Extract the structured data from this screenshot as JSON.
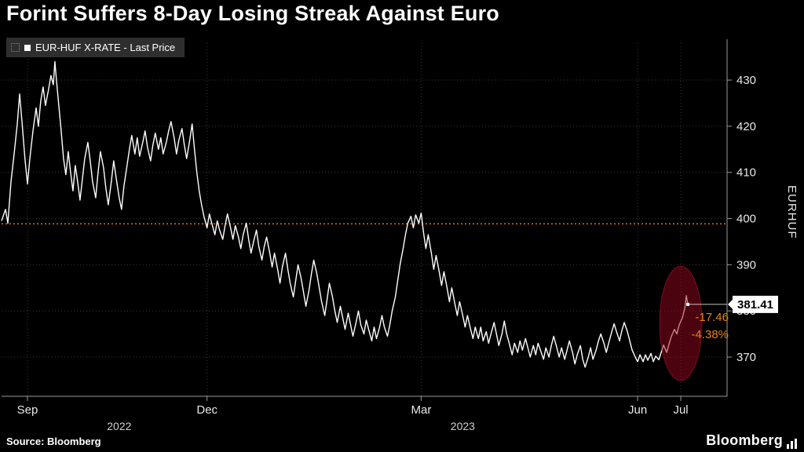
{
  "header": {
    "title": "Forint Suffers 8-Day Losing Streak Against Euro"
  },
  "legend": {
    "label": "EUR-HUF X-RATE - Last Price"
  },
  "footer": {
    "source": "Source:  Bloomberg",
    "logo": "Bloomberg"
  },
  "chart_data": {
    "type": "line",
    "title": "EUR-HUF X-RATE - Last Price",
    "ylabel": "EURHUF",
    "ylim": [
      361.5,
      438
    ],
    "xmax": 925,
    "grid": true,
    "legend_position": "top-left",
    "y_ticks": [
      370,
      380,
      390,
      400,
      410,
      420,
      430
    ],
    "x_ticks": [
      {
        "label": "Sep",
        "pos": 33
      },
      {
        "label": "Dec",
        "pos": 262
      },
      {
        "label": "Mar",
        "pos": 535
      },
      {
        "label": "Jun",
        "pos": 811
      },
      {
        "label": "Jul",
        "pos": 866
      }
    ],
    "x_years": [
      {
        "label": "2022",
        "pos": 150
      },
      {
        "label": "2023",
        "pos": 588
      }
    ],
    "reference_line": {
      "value": 398.87,
      "color": "#e8820c"
    },
    "last_price": {
      "value": 381.41,
      "label": "381.41"
    },
    "annotations": [
      {
        "text": "-17.46",
        "value": 378.7,
        "color": "#e8820c"
      },
      {
        "text": "-4.38%",
        "value": 374.9,
        "color": "#e8820c"
      }
    ],
    "highlight_ellipse": {
      "x": 866,
      "value": 377.3,
      "rx": 27,
      "ry_value": 12.4,
      "fill": "rgba(150,8,30,0.5)"
    },
    "colors": {
      "line": "#ffffff",
      "grid": "#3a3a3a",
      "axis": "#9a9a9a",
      "tick_text": "#e8e8e8",
      "orange": "#e8820c",
      "background": "#000000"
    },
    "series": [
      {
        "name": "EUR-HUF X-RATE",
        "points": [
          [
            0,
            399.5
          ],
          [
            5,
            402
          ],
          [
            8,
            399
          ],
          [
            12,
            408
          ],
          [
            16,
            414
          ],
          [
            20,
            420.5
          ],
          [
            23,
            427
          ],
          [
            26,
            421
          ],
          [
            30,
            412.5
          ],
          [
            33,
            407.5
          ],
          [
            36,
            413
          ],
          [
            40,
            419
          ],
          [
            44,
            424
          ],
          [
            47,
            420
          ],
          [
            50,
            425.5
          ],
          [
            53,
            428.5
          ],
          [
            56,
            424.5
          ],
          [
            60,
            428
          ],
          [
            63,
            431
          ],
          [
            66,
            429
          ],
          [
            68,
            434
          ],
          [
            70,
            430
          ],
          [
            73,
            424.5
          ],
          [
            76,
            419
          ],
          [
            79,
            413
          ],
          [
            82,
            409.5
          ],
          [
            85,
            414.5
          ],
          [
            88,
            410
          ],
          [
            91,
            406
          ],
          [
            94,
            411.5
          ],
          [
            97,
            408
          ],
          [
            100,
            404
          ],
          [
            103,
            408.5
          ],
          [
            106,
            413
          ],
          [
            110,
            416.5
          ],
          [
            113,
            412.5
          ],
          [
            116,
            408
          ],
          [
            120,
            404.5
          ],
          [
            123,
            410
          ],
          [
            126,
            414.5
          ],
          [
            130,
            411
          ],
          [
            133,
            406.5
          ],
          [
            136,
            403
          ],
          [
            140,
            408
          ],
          [
            143,
            412.5
          ],
          [
            146,
            409
          ],
          [
            150,
            404.5
          ],
          [
            153,
            402
          ],
          [
            156,
            407
          ],
          [
            160,
            411.5
          ],
          [
            163,
            415
          ],
          [
            166,
            418
          ],
          [
            170,
            414
          ],
          [
            173,
            417.5
          ],
          [
            176,
            413.5
          ],
          [
            180,
            416.5
          ],
          [
            183,
            419
          ],
          [
            186,
            415.5
          ],
          [
            190,
            412.5
          ],
          [
            193,
            416
          ],
          [
            196,
            418.5
          ],
          [
            200,
            415
          ],
          [
            203,
            417.5
          ],
          [
            206,
            414
          ],
          [
            210,
            416.5
          ],
          [
            213,
            419
          ],
          [
            216,
            421
          ],
          [
            220,
            417.5
          ],
          [
            223,
            414
          ],
          [
            226,
            417
          ],
          [
            230,
            419.5
          ],
          [
            233,
            416
          ],
          [
            236,
            413
          ],
          [
            240,
            417
          ],
          [
            243,
            420.5
          ],
          [
            246,
            415
          ],
          [
            249,
            410
          ],
          [
            252,
            406
          ],
          [
            255,
            403
          ],
          [
            258,
            400.5
          ],
          [
            262,
            398
          ],
          [
            265,
            401
          ],
          [
            268,
            399
          ],
          [
            272,
            396.5
          ],
          [
            275,
            399.5
          ],
          [
            278,
            397.5
          ],
          [
            282,
            395.5
          ],
          [
            285,
            398.5
          ],
          [
            288,
            401
          ],
          [
            292,
            398
          ],
          [
            295,
            395.5
          ],
          [
            298,
            398.5
          ],
          [
            302,
            396
          ],
          [
            305,
            393.5
          ],
          [
            308,
            396.5
          ],
          [
            312,
            399
          ],
          [
            315,
            395.5
          ],
          [
            318,
            392.5
          ],
          [
            322,
            395.5
          ],
          [
            325,
            397.5
          ],
          [
            328,
            394
          ],
          [
            332,
            391
          ],
          [
            335,
            394
          ],
          [
            338,
            396
          ],
          [
            342,
            392.5
          ],
          [
            345,
            389.5
          ],
          [
            348,
            392.5
          ],
          [
            352,
            389
          ],
          [
            355,
            386
          ],
          [
            358,
            389.5
          ],
          [
            362,
            392.5
          ],
          [
            365,
            389
          ],
          [
            368,
            386
          ],
          [
            372,
            383
          ],
          [
            375,
            386.5
          ],
          [
            378,
            390
          ],
          [
            382,
            387
          ],
          [
            385,
            384
          ],
          [
            388,
            381
          ],
          [
            392,
            384.5
          ],
          [
            395,
            388
          ],
          [
            398,
            391
          ],
          [
            402,
            388
          ],
          [
            405,
            385
          ],
          [
            408,
            382
          ],
          [
            412,
            379
          ],
          [
            415,
            382.5
          ],
          [
            418,
            386
          ],
          [
            422,
            383
          ],
          [
            425,
            380
          ],
          [
            428,
            377.5
          ],
          [
            432,
            381
          ],
          [
            435,
            378.5
          ],
          [
            438,
            376
          ],
          [
            442,
            379.5
          ],
          [
            445,
            377
          ],
          [
            448,
            374.5
          ],
          [
            452,
            377.5
          ],
          [
            455,
            380
          ],
          [
            458,
            377
          ],
          [
            462,
            375
          ],
          [
            465,
            378
          ],
          [
            468,
            376
          ],
          [
            472,
            373.5
          ],
          [
            475,
            376.5
          ],
          [
            478,
            374
          ],
          [
            482,
            376.5
          ],
          [
            485,
            379
          ],
          [
            488,
            376.5
          ],
          [
            492,
            374.5
          ],
          [
            495,
            377
          ],
          [
            498,
            380
          ],
          [
            502,
            383
          ],
          [
            505,
            386.5
          ],
          [
            508,
            390
          ],
          [
            512,
            393.5
          ],
          [
            515,
            396.5
          ],
          [
            518,
            399
          ],
          [
            522,
            400.5
          ],
          [
            525,
            398
          ],
          [
            528,
            400.8
          ],
          [
            532,
            399
          ],
          [
            535,
            401.2
          ],
          [
            538,
            397
          ],
          [
            541,
            393.5
          ],
          [
            544,
            396.5
          ],
          [
            548,
            392.5
          ],
          [
            551,
            389
          ],
          [
            554,
            392
          ],
          [
            558,
            388.5
          ],
          [
            561,
            385.5
          ],
          [
            564,
            388.5
          ],
          [
            568,
            385
          ],
          [
            571,
            382
          ],
          [
            574,
            385
          ],
          [
            578,
            381.5
          ],
          [
            581,
            379
          ],
          [
            584,
            382
          ],
          [
            588,
            379
          ],
          [
            591,
            376.5
          ],
          [
            594,
            379
          ],
          [
            598,
            376
          ],
          [
            601,
            374
          ],
          [
            604,
            376.5
          ],
          [
            608,
            374
          ],
          [
            611,
            376.5
          ],
          [
            614,
            373.5
          ],
          [
            618,
            375.5
          ],
          [
            621,
            373
          ],
          [
            624,
            375
          ],
          [
            628,
            377.5
          ],
          [
            631,
            375
          ],
          [
            634,
            372.5
          ],
          [
            638,
            375
          ],
          [
            641,
            377.8
          ],
          [
            644,
            375
          ],
          [
            648,
            372.5
          ],
          [
            651,
            370.5
          ],
          [
            654,
            373
          ],
          [
            658,
            371
          ],
          [
            661,
            373.5
          ],
          [
            664,
            371.5
          ],
          [
            668,
            374
          ],
          [
            671,
            372
          ],
          [
            674,
            370
          ],
          [
            678,
            372.5
          ],
          [
            681,
            370.5
          ],
          [
            684,
            373
          ],
          [
            688,
            371
          ],
          [
            691,
            369.5
          ],
          [
            694,
            372
          ],
          [
            698,
            370
          ],
          [
            701,
            372.5
          ],
          [
            704,
            374.5
          ],
          [
            708,
            372
          ],
          [
            711,
            370
          ],
          [
            714,
            372
          ],
          [
            718,
            369.5
          ],
          [
            721,
            371.5
          ],
          [
            724,
            373.5
          ],
          [
            728,
            371
          ],
          [
            731,
            368.5
          ],
          [
            734,
            370.5
          ],
          [
            738,
            372.5
          ],
          [
            741,
            369.5
          ],
          [
            744,
            367.8
          ],
          [
            748,
            370
          ],
          [
            751,
            372
          ],
          [
            754,
            369.5
          ],
          [
            758,
            371.5
          ],
          [
            761,
            373.5
          ],
          [
            764,
            375
          ],
          [
            768,
            373
          ],
          [
            771,
            371
          ],
          [
            774,
            373
          ],
          [
            778,
            375.5
          ],
          [
            781,
            377.2
          ],
          [
            784,
            375.5
          ],
          [
            788,
            373.5
          ],
          [
            791,
            375.8
          ],
          [
            794,
            377.5
          ],
          [
            798,
            375.5
          ],
          [
            801,
            373.5
          ],
          [
            804,
            371.5
          ],
          [
            808,
            370
          ],
          [
            811,
            369
          ],
          [
            814,
            370.5
          ],
          [
            818,
            369
          ],
          [
            821,
            370.5
          ],
          [
            824,
            369.3
          ],
          [
            828,
            370.8
          ],
          [
            831,
            369
          ],
          [
            834,
            370.2
          ],
          [
            838,
            369.4
          ],
          [
            841,
            371
          ],
          [
            844,
            372.6
          ],
          [
            848,
            371
          ],
          [
            851,
            372.8
          ],
          [
            854,
            374.5
          ],
          [
            858,
            376
          ],
          [
            861,
            375
          ],
          [
            864,
            377
          ],
          [
            868,
            378.5
          ],
          [
            871,
            380.5
          ],
          [
            873,
            383.3
          ],
          [
            875,
            381.41
          ]
        ]
      }
    ]
  }
}
